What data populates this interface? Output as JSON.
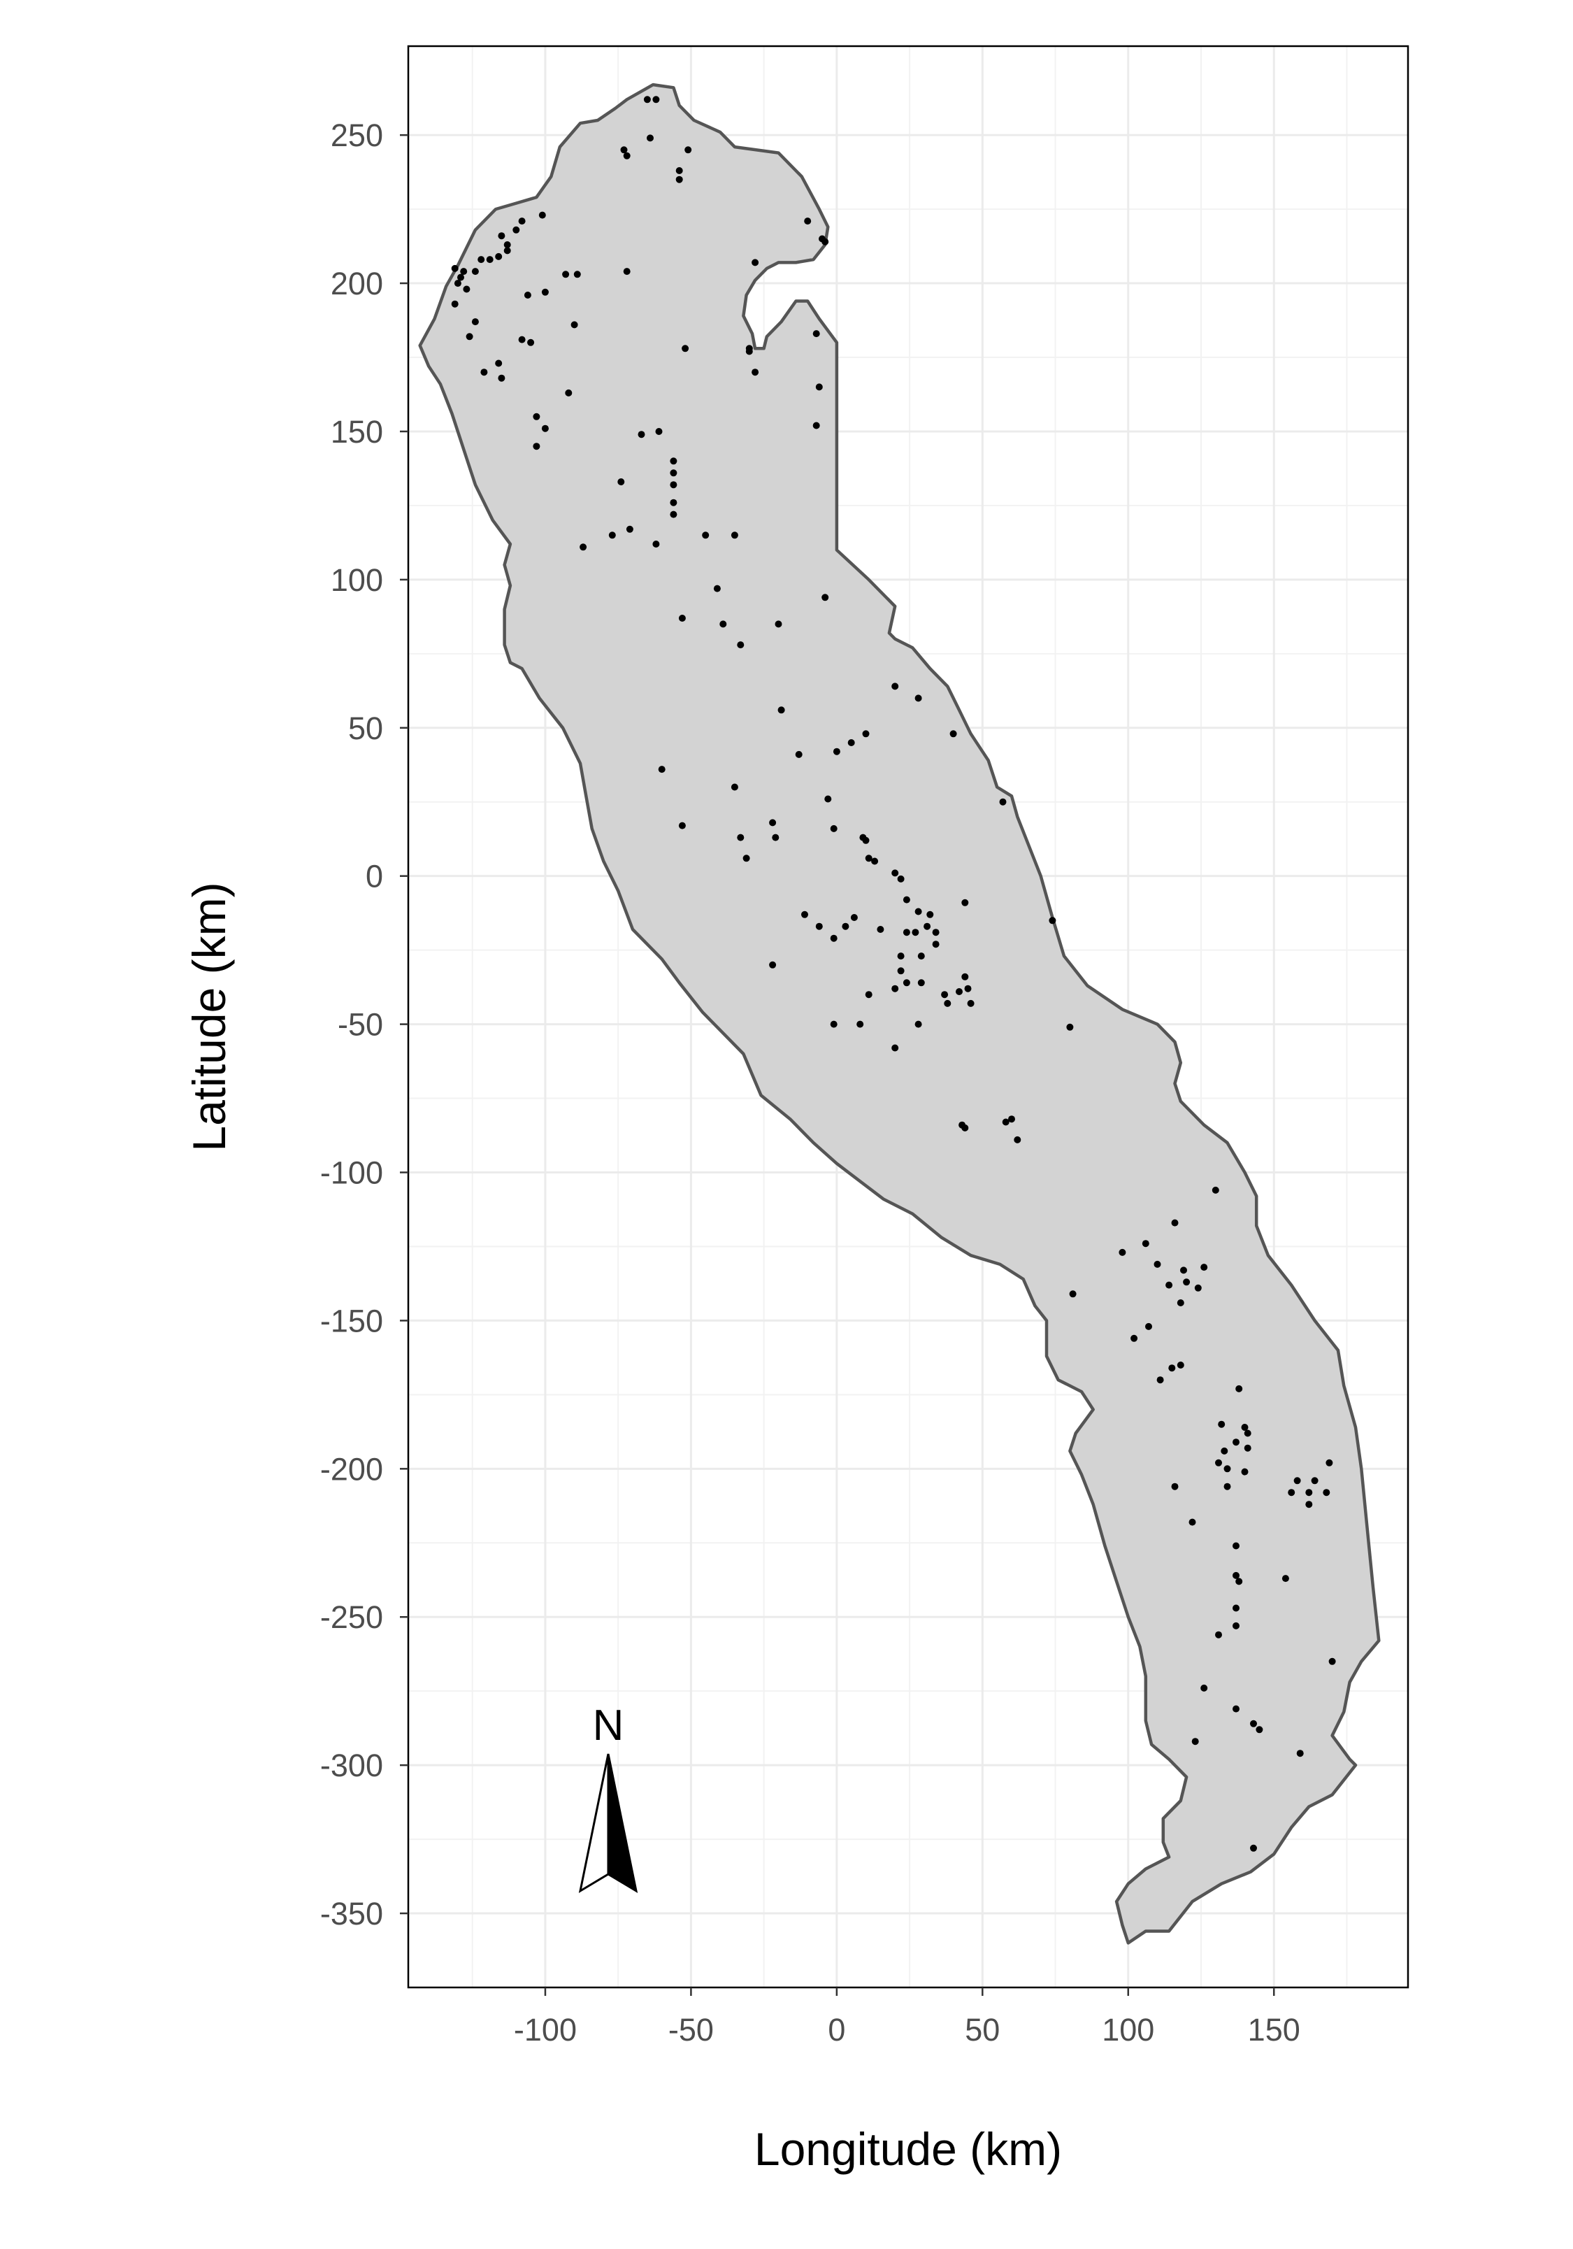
{
  "chart_data": {
    "type": "scatter",
    "title": "",
    "xlabel": "Longitude (km)",
    "ylabel": "Latitude (km)",
    "xlim": [
      -147,
      196
    ],
    "ylim": [
      -375,
      280
    ],
    "x_ticks": [
      -100,
      -50,
      0,
      50,
      100,
      150
    ],
    "y_ticks": [
      250,
      200,
      150,
      100,
      50,
      0,
      -50,
      -100,
      -150,
      -200,
      -250,
      -300,
      -350
    ],
    "x_tick_labels": [
      "-100",
      "-50",
      "0",
      "50",
      "100",
      "150"
    ],
    "y_tick_labels": [
      "250",
      "200",
      "150",
      "100",
      "50",
      "0",
      "-50",
      "-100",
      "-150",
      "-200",
      "-250",
      "-300",
      "-350"
    ],
    "grid": true,
    "region_fill": "#d3d3d3",
    "region_stroke": "#555555",
    "point_color": "#000000",
    "region_outline": [
      [
        -143,
        179
      ],
      [
        -138,
        188
      ],
      [
        -134,
        199
      ],
      [
        -130,
        206
      ],
      [
        -124,
        218
      ],
      [
        -117,
        225
      ],
      [
        -110,
        227
      ],
      [
        -103,
        229
      ],
      [
        -98,
        236
      ],
      [
        -95,
        246
      ],
      [
        -88,
        254
      ],
      [
        -82,
        255
      ],
      [
        -76,
        259
      ],
      [
        -72,
        262
      ],
      [
        -63,
        267
      ],
      [
        -56,
        266
      ],
      [
        -54,
        260
      ],
      [
        -49,
        255
      ],
      [
        -40,
        251
      ],
      [
        -35,
        246
      ],
      [
        -20,
        244
      ],
      [
        -12,
        236
      ],
      [
        -6,
        225
      ],
      [
        -3,
        219
      ],
      [
        -4,
        213
      ],
      [
        -8,
        208
      ],
      [
        -14,
        207
      ],
      [
        -20,
        207
      ],
      [
        -24,
        205
      ],
      [
        -28,
        201
      ],
      [
        -31,
        196
      ],
      [
        -32,
        189
      ],
      [
        -29,
        183
      ],
      [
        -28,
        178
      ],
      [
        -25,
        178
      ],
      [
        -24,
        182
      ],
      [
        -19,
        187
      ],
      [
        -14,
        194
      ],
      [
        -10,
        194
      ],
      [
        -6,
        188
      ],
      [
        0,
        180
      ],
      [
        0,
        110
      ],
      [
        11,
        100
      ],
      [
        20,
        91
      ],
      [
        18,
        82
      ],
      [
        20,
        80
      ],
      [
        26,
        77
      ],
      [
        32,
        70
      ],
      [
        38,
        64
      ],
      [
        42,
        56
      ],
      [
        46,
        48
      ],
      [
        52,
        39
      ],
      [
        55,
        30
      ],
      [
        60,
        27
      ],
      [
        62,
        20
      ],
      [
        66,
        10
      ],
      [
        70,
        0
      ],
      [
        74,
        -14
      ],
      [
        78,
        -27
      ],
      [
        86,
        -37
      ],
      [
        98,
        -45
      ],
      [
        110,
        -50
      ],
      [
        116,
        -56
      ],
      [
        118,
        -63
      ],
      [
        116,
        -70
      ],
      [
        118,
        -76
      ],
      [
        126,
        -84
      ],
      [
        134,
        -90
      ],
      [
        140,
        -100
      ],
      [
        144,
        -108
      ],
      [
        144,
        -118
      ],
      [
        148,
        -128
      ],
      [
        156,
        -138
      ],
      [
        164,
        -150
      ],
      [
        172,
        -160
      ],
      [
        174,
        -172
      ],
      [
        178,
        -186
      ],
      [
        180,
        -200
      ],
      [
        182,
        -220
      ],
      [
        184,
        -240
      ],
      [
        186,
        -258
      ],
      [
        180,
        -265
      ],
      [
        176,
        -272
      ],
      [
        174,
        -282
      ],
      [
        170,
        -290
      ],
      [
        176,
        -298
      ],
      [
        178,
        -300
      ],
      [
        170,
        -310
      ],
      [
        162,
        -314
      ],
      [
        156,
        -321
      ],
      [
        150,
        -330
      ],
      [
        142,
        -336
      ],
      [
        132,
        -340
      ],
      [
        122,
        -346
      ],
      [
        114,
        -356
      ],
      [
        106,
        -356
      ],
      [
        100,
        -360
      ],
      [
        98,
        -354
      ],
      [
        96,
        -346
      ],
      [
        100,
        -340
      ],
      [
        106,
        -335
      ],
      [
        114,
        -331
      ],
      [
        112,
        -326
      ],
      [
        112,
        -318
      ],
      [
        118,
        -312
      ],
      [
        120,
        -304
      ],
      [
        114,
        -298
      ],
      [
        108,
        -293
      ],
      [
        106,
        -285
      ],
      [
        106,
        -270
      ],
      [
        104,
        -260
      ],
      [
        100,
        -250
      ],
      [
        96,
        -238
      ],
      [
        92,
        -226
      ],
      [
        88,
        -212
      ],
      [
        84,
        -202
      ],
      [
        80,
        -194
      ],
      [
        82,
        -188
      ],
      [
        88,
        -180
      ],
      [
        84,
        -174
      ],
      [
        76,
        -170
      ],
      [
        72,
        -162
      ],
      [
        72,
        -150
      ],
      [
        68,
        -145
      ],
      [
        64,
        -136
      ],
      [
        56,
        -131
      ],
      [
        46,
        -128
      ],
      [
        36,
        -122
      ],
      [
        26,
        -114
      ],
      [
        16,
        -109
      ],
      [
        8,
        -103
      ],
      [
        0,
        -97
      ],
      [
        -8,
        -90
      ],
      [
        -16,
        -82
      ],
      [
        -26,
        -74
      ],
      [
        -32,
        -60
      ],
      [
        -40,
        -52
      ],
      [
        -46,
        -46
      ],
      [
        -54,
        -36
      ],
      [
        -60,
        -28
      ],
      [
        -70,
        -18
      ],
      [
        -75,
        -5
      ],
      [
        -80,
        5
      ],
      [
        -84,
        16
      ],
      [
        -86,
        27
      ],
      [
        -88,
        38
      ],
      [
        -94,
        50
      ],
      [
        -102,
        60
      ],
      [
        -108,
        70
      ],
      [
        -112,
        72
      ],
      [
        -114,
        78
      ],
      [
        -114,
        90
      ],
      [
        -112,
        98
      ],
      [
        -114,
        105
      ],
      [
        -112,
        112
      ],
      [
        -118,
        120
      ],
      [
        -124,
        132
      ],
      [
        -128,
        144
      ],
      [
        -132,
        156
      ],
      [
        -136,
        166
      ],
      [
        -140,
        172
      ],
      [
        -143,
        179
      ]
    ],
    "points": [
      [
        -65,
        262
      ],
      [
        -62,
        262
      ],
      [
        -64,
        249
      ],
      [
        -73,
        245
      ],
      [
        -72,
        243
      ],
      [
        -51,
        245
      ],
      [
        -54,
        238
      ],
      [
        -54,
        235
      ],
      [
        -10,
        221
      ],
      [
        -5,
        215
      ],
      [
        -4,
        214
      ],
      [
        -101,
        223
      ],
      [
        -108,
        221
      ],
      [
        -110,
        218
      ],
      [
        -115,
        216
      ],
      [
        -113,
        213
      ],
      [
        -113,
        211
      ],
      [
        -116,
        209
      ],
      [
        -119,
        208
      ],
      [
        -122,
        208
      ],
      [
        -124,
        204
      ],
      [
        -128,
        204
      ],
      [
        -129,
        202
      ],
      [
        -130,
        200
      ],
      [
        -131,
        205
      ],
      [
        -127,
        198
      ],
      [
        -131,
        193
      ],
      [
        -106,
        196
      ],
      [
        -100,
        197
      ],
      [
        -72,
        204
      ],
      [
        -93,
        203
      ],
      [
        -89,
        203
      ],
      [
        -90,
        186
      ],
      [
        -124,
        187
      ],
      [
        -126,
        182
      ],
      [
        -108,
        181
      ],
      [
        -105,
        180
      ],
      [
        -116,
        173
      ],
      [
        -121,
        170
      ],
      [
        -115,
        168
      ],
      [
        -28,
        207
      ],
      [
        -52,
        178
      ],
      [
        -30,
        177
      ],
      [
        -30,
        178
      ],
      [
        -28,
        170
      ],
      [
        -7,
        183
      ],
      [
        -6,
        165
      ],
      [
        -7,
        152
      ],
      [
        -92,
        163
      ],
      [
        -103,
        155
      ],
      [
        -100,
        151
      ],
      [
        -103,
        145
      ],
      [
        -67,
        149
      ],
      [
        -61,
        150
      ],
      [
        -56,
        140
      ],
      [
        -56,
        136
      ],
      [
        -56,
        132
      ],
      [
        -56,
        126
      ],
      [
        -56,
        122
      ],
      [
        -74,
        133
      ],
      [
        -71,
        117
      ],
      [
        -77,
        115
      ],
      [
        -62,
        112
      ],
      [
        -87,
        111
      ],
      [
        -45,
        115
      ],
      [
        -35,
        115
      ],
      [
        -41,
        97
      ],
      [
        -20,
        85
      ],
      [
        -39,
        85
      ],
      [
        -33,
        78
      ],
      [
        -4,
        94
      ],
      [
        -53,
        87
      ],
      [
        -19,
        56
      ],
      [
        -60,
        36
      ],
      [
        -13,
        41
      ],
      [
        10,
        48
      ],
      [
        0,
        42
      ],
      [
        5,
        45
      ],
      [
        28,
        60
      ],
      [
        20,
        64
      ],
      [
        40,
        48
      ],
      [
        -35,
        30
      ],
      [
        -53,
        17
      ],
      [
        -22,
        18
      ],
      [
        -21,
        13
      ],
      [
        -33,
        13
      ],
      [
        -31,
        6
      ],
      [
        -3,
        26
      ],
      [
        -1,
        16
      ],
      [
        9,
        13
      ],
      [
        10,
        12
      ],
      [
        11,
        6
      ],
      [
        13,
        5
      ],
      [
        20,
        1
      ],
      [
        22,
        -1
      ],
      [
        57,
        25
      ],
      [
        74,
        -15
      ],
      [
        44,
        -9
      ],
      [
        -11,
        -13
      ],
      [
        -6,
        -17
      ],
      [
        6,
        -14
      ],
      [
        3,
        -17
      ],
      [
        15,
        -18
      ],
      [
        24,
        -8
      ],
      [
        28,
        -12
      ],
      [
        32,
        -13
      ],
      [
        31,
        -17
      ],
      [
        27,
        -19
      ],
      [
        24,
        -19
      ],
      [
        34,
        -19
      ],
      [
        34,
        -23
      ],
      [
        22,
        -27
      ],
      [
        29,
        -27
      ],
      [
        22,
        -32
      ],
      [
        24,
        -36
      ],
      [
        20,
        -38
      ],
      [
        29,
        -36
      ],
      [
        37,
        -40
      ],
      [
        44,
        -34
      ],
      [
        45,
        -38
      ],
      [
        38,
        -43
      ],
      [
        42,
        -39
      ],
      [
        46,
        -43
      ],
      [
        -22,
        -30
      ],
      [
        -1,
        -21
      ],
      [
        11,
        -40
      ],
      [
        -1,
        -50
      ],
      [
        8,
        -50
      ],
      [
        28,
        -50
      ],
      [
        20,
        -58
      ],
      [
        80,
        -51
      ],
      [
        60,
        -82
      ],
      [
        58,
        -83
      ],
      [
        62,
        -89
      ],
      [
        43,
        -84
      ],
      [
        44,
        -85
      ],
      [
        130,
        -106
      ],
      [
        116,
        -117
      ],
      [
        98,
        -127
      ],
      [
        106,
        -124
      ],
      [
        110,
        -131
      ],
      [
        119,
        -133
      ],
      [
        120,
        -137
      ],
      [
        114,
        -138
      ],
      [
        124,
        -139
      ],
      [
        118,
        -144
      ],
      [
        126,
        -132
      ],
      [
        81,
        -141
      ],
      [
        102,
        -156
      ],
      [
        107,
        -152
      ],
      [
        118,
        -165
      ],
      [
        115,
        -166
      ],
      [
        111,
        -170
      ],
      [
        138,
        -173
      ],
      [
        132,
        -185
      ],
      [
        140,
        -186
      ],
      [
        141,
        -188
      ],
      [
        137,
        -191
      ],
      [
        141,
        -193
      ],
      [
        133,
        -194
      ],
      [
        131,
        -198
      ],
      [
        134,
        -200
      ],
      [
        134,
        -206
      ],
      [
        140,
        -201
      ],
      [
        116,
        -206
      ],
      [
        156,
        -208
      ],
      [
        158,
        -204
      ],
      [
        164,
        -204
      ],
      [
        162,
        -208
      ],
      [
        162,
        -212
      ],
      [
        168,
        -208
      ],
      [
        169,
        -198
      ],
      [
        122,
        -218
      ],
      [
        137,
        -226
      ],
      [
        137,
        -236
      ],
      [
        138,
        -238
      ],
      [
        137,
        -247
      ],
      [
        137,
        -253
      ],
      [
        131,
        -256
      ],
      [
        154,
        -237
      ],
      [
        170,
        -265
      ],
      [
        126,
        -274
      ],
      [
        137,
        -281
      ],
      [
        143,
        -286
      ],
      [
        145,
        -288
      ],
      [
        123,
        -292
      ],
      [
        159,
        -296
      ],
      [
        143,
        -328
      ]
    ],
    "annotation": "N",
    "north_arrow": true
  }
}
